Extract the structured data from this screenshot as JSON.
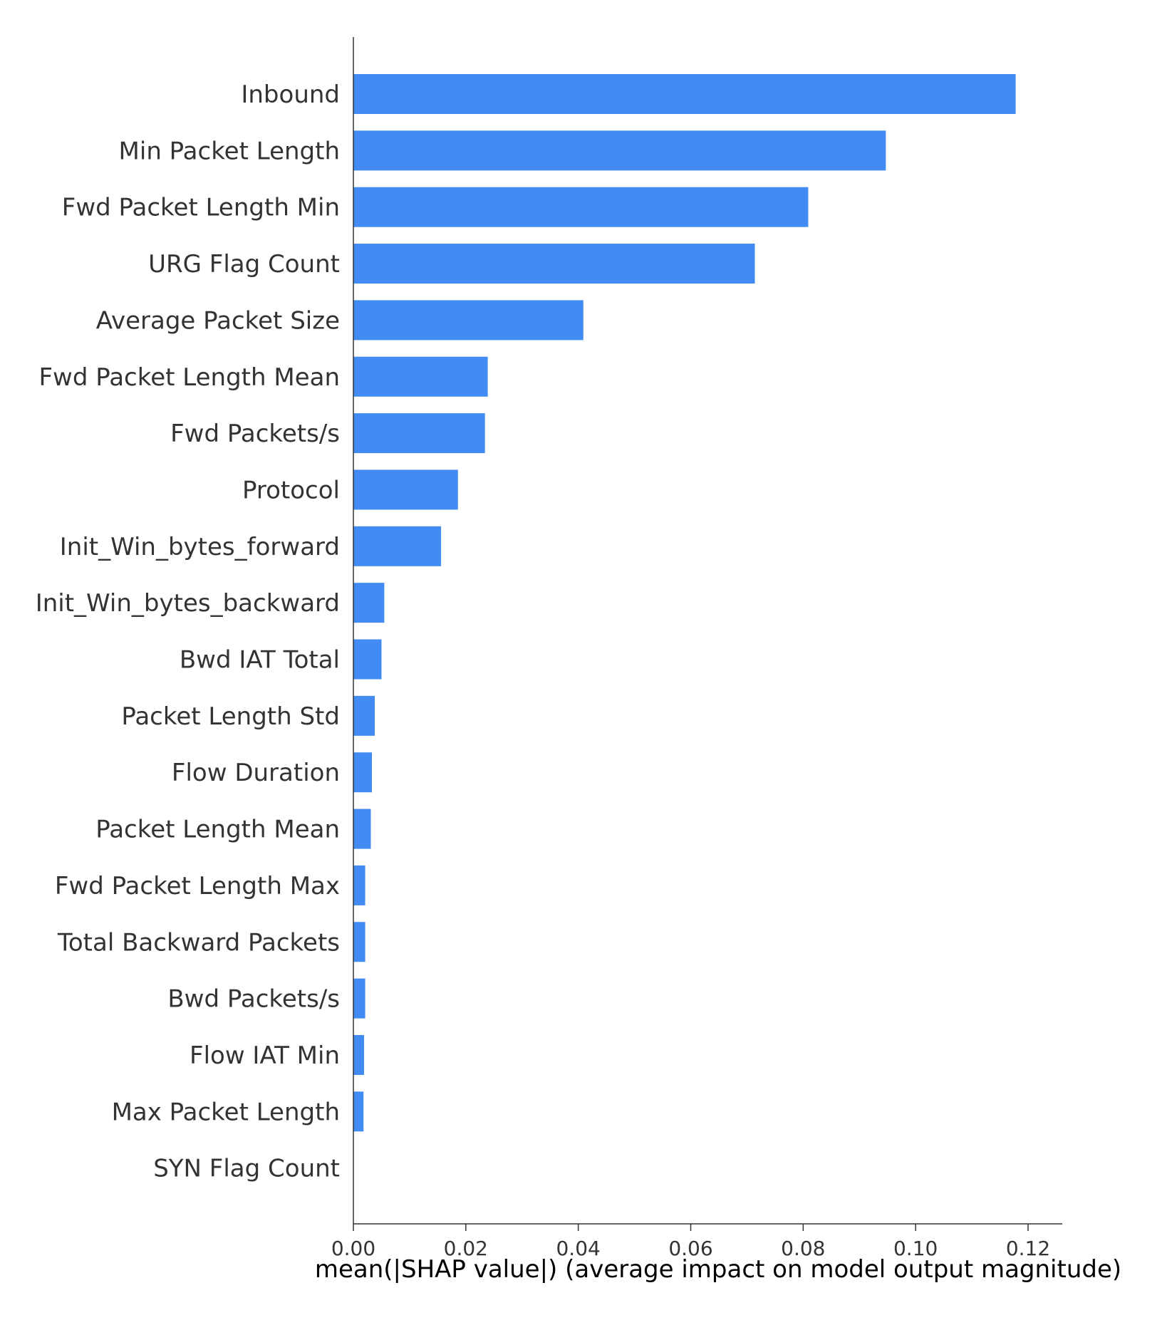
{
  "chart_data": {
    "type": "bar",
    "orientation": "horizontal",
    "title": "",
    "xlabel": "mean(|SHAP value|) (average impact on model output magnitude)",
    "ylabel": "",
    "xlim": [
      0.0,
      0.124
    ],
    "xticks": [
      0.0,
      0.02,
      0.04,
      0.06,
      0.08,
      0.1,
      0.12
    ],
    "xtick_labels": [
      "0.00",
      "0.02",
      "0.04",
      "0.06",
      "0.08",
      "0.10",
      "0.12"
    ],
    "grid": false,
    "legend": "none",
    "bar_color": "#418bf2",
    "categories": [
      "Inbound",
      "Min Packet Length",
      "Fwd Packet Length Min",
      "URG Flag Count",
      "Average Packet Size",
      "Fwd Packet Length Mean",
      "Fwd Packets/s",
      "Protocol",
      "Init_Win_bytes_forward",
      "Init_Win_bytes_backward",
      "Bwd IAT Total",
      "Packet Length Std",
      "Flow Duration",
      "Packet Length Mean",
      "Fwd Packet Length Max",
      "Total Backward Packets",
      "Bwd Packets/s",
      "Flow IAT Min",
      "Max Packet Length",
      "SYN Flag Count"
    ],
    "values": [
      0.1178,
      0.0947,
      0.0809,
      0.0714,
      0.0409,
      0.0239,
      0.0234,
      0.0186,
      0.0156,
      0.0055,
      0.005,
      0.0038,
      0.0033,
      0.0031,
      0.0021,
      0.0021,
      0.0021,
      0.0019,
      0.0018,
      0.0
    ]
  }
}
